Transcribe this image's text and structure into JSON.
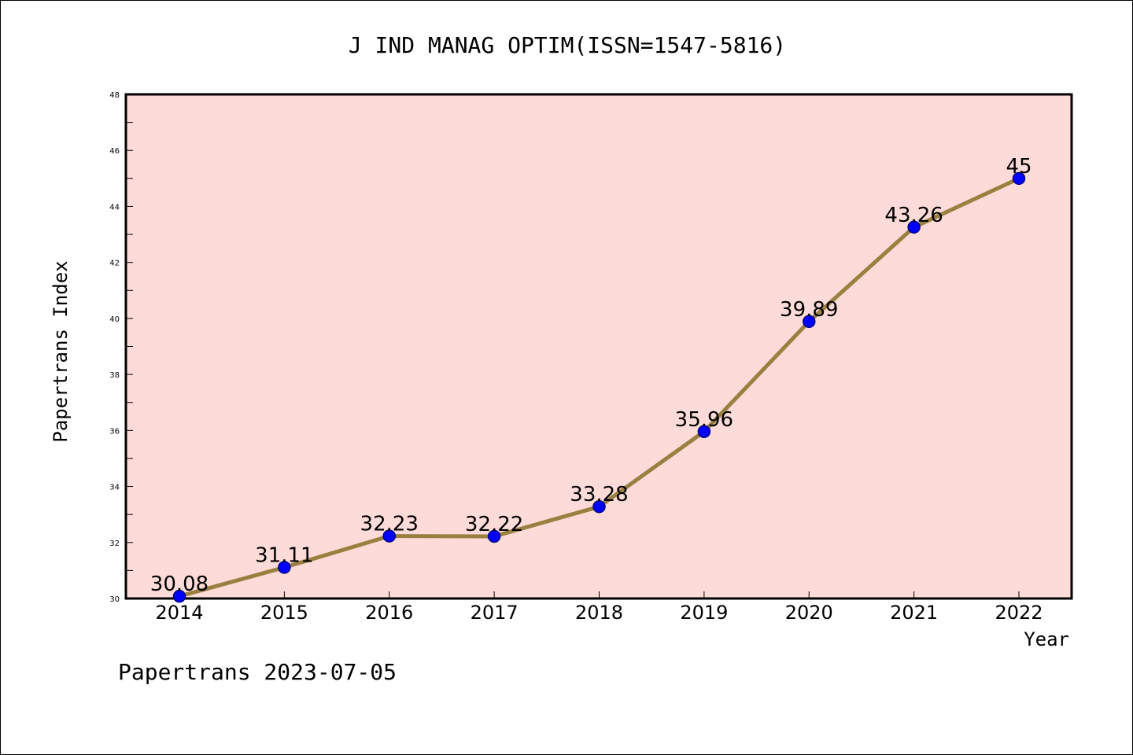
{
  "chart_data": {
    "type": "line",
    "title": "J IND MANAG OPTIM(ISSN=1547-5816)",
    "xlabel": "Year",
    "ylabel": "Papertrans Index",
    "categories": [
      "2014",
      "2015",
      "2016",
      "2017",
      "2018",
      "2019",
      "2020",
      "2021",
      "2022"
    ],
    "series": [
      {
        "values": [
          30.08,
          31.11,
          32.23,
          32.22,
          33.28,
          35.96,
          39.89,
          43.26,
          45
        ]
      }
    ],
    "data_labels": [
      "30.08",
      "31.11",
      "32.23",
      "32.22",
      "33.28",
      "35.96",
      "39.89",
      "43.26",
      "45"
    ],
    "ylim": [
      30,
      48
    ],
    "yticks": [
      "30",
      "32",
      "34",
      "36",
      "38",
      "40",
      "42",
      "44",
      "46",
      "48"
    ],
    "grid": false,
    "legend": "none",
    "colors": {
      "plot_background": "#fddbd8",
      "line": "#9a8040",
      "marker": "#0000ff",
      "marker_edge": "#000080",
      "axis": "#000000"
    }
  },
  "footer": {
    "text": "Papertrans 2023-07-05"
  }
}
